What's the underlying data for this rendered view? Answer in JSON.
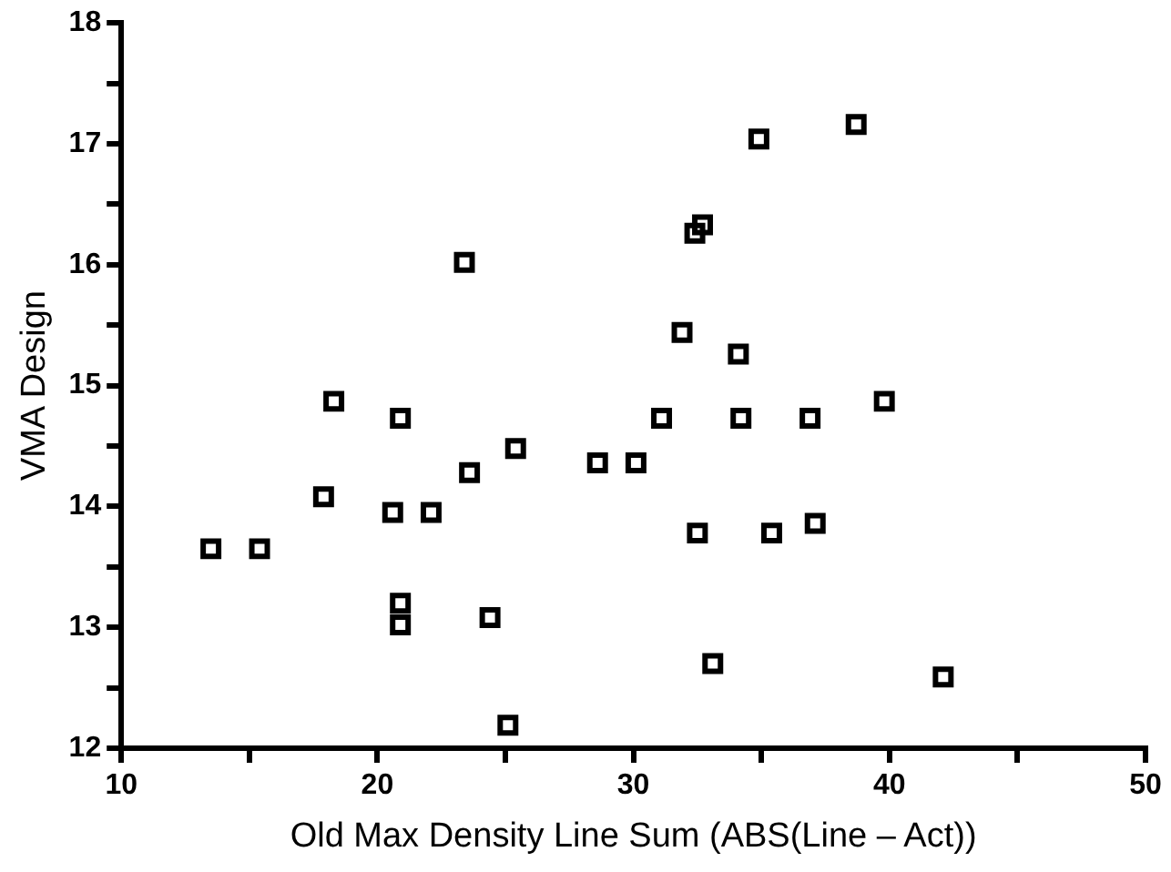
{
  "chart_data": {
    "type": "scatter",
    "xlabel": "Old Max Density Line Sum (ABS(Line – Act))",
    "ylabel": "VMA Design",
    "series": [
      {
        "color": "#000000",
        "x": [
          13.5,
          15.4,
          17.9,
          18.3,
          20.6,
          20.9,
          20.9,
          20.9,
          22.1,
          23.4,
          23.6,
          24.4,
          25.1,
          25.4,
          28.6,
          30.1,
          31.1,
          31.9,
          32.4,
          32.7,
          32.5,
          33.1,
          34.1,
          34.2,
          34.9,
          35.4,
          36.9,
          37.1,
          38.7,
          39.8,
          42.1
        ],
        "values": [
          13.65,
          13.65,
          14.08,
          14.87,
          13.95,
          14.73,
          13.2,
          13.02,
          13.95,
          16.02,
          14.28,
          13.08,
          12.19,
          14.48,
          14.36,
          14.36,
          14.73,
          15.44,
          16.26,
          16.33,
          13.78,
          12.7,
          15.26,
          14.73,
          17.04,
          13.78,
          14.73,
          13.86,
          17.16,
          14.87,
          12.59
        ]
      }
    ],
    "xlim": [
      10,
      50
    ],
    "ylim": [
      12,
      18
    ],
    "xticks": [
      10,
      {
        "value": 15,
        "label": null
      },
      20,
      {
        "value": 25,
        "label": null
      },
      30,
      {
        "value": 35,
        "label": null
      },
      40,
      {
        "value": 45,
        "label": null
      },
      50
    ],
    "yticks": [
      12,
      {
        "value": 12.5,
        "label": null
      },
      13,
      {
        "value": 13.5,
        "label": null
      },
      14,
      {
        "value": 14.5,
        "label": null
      },
      15,
      {
        "value": 15.5,
        "label": null
      },
      16,
      {
        "value": 16.5,
        "label": null
      },
      17,
      {
        "value": 17.5,
        "label": null
      },
      18
    ],
    "grid": false,
    "legend": false,
    "marker": "square"
  }
}
